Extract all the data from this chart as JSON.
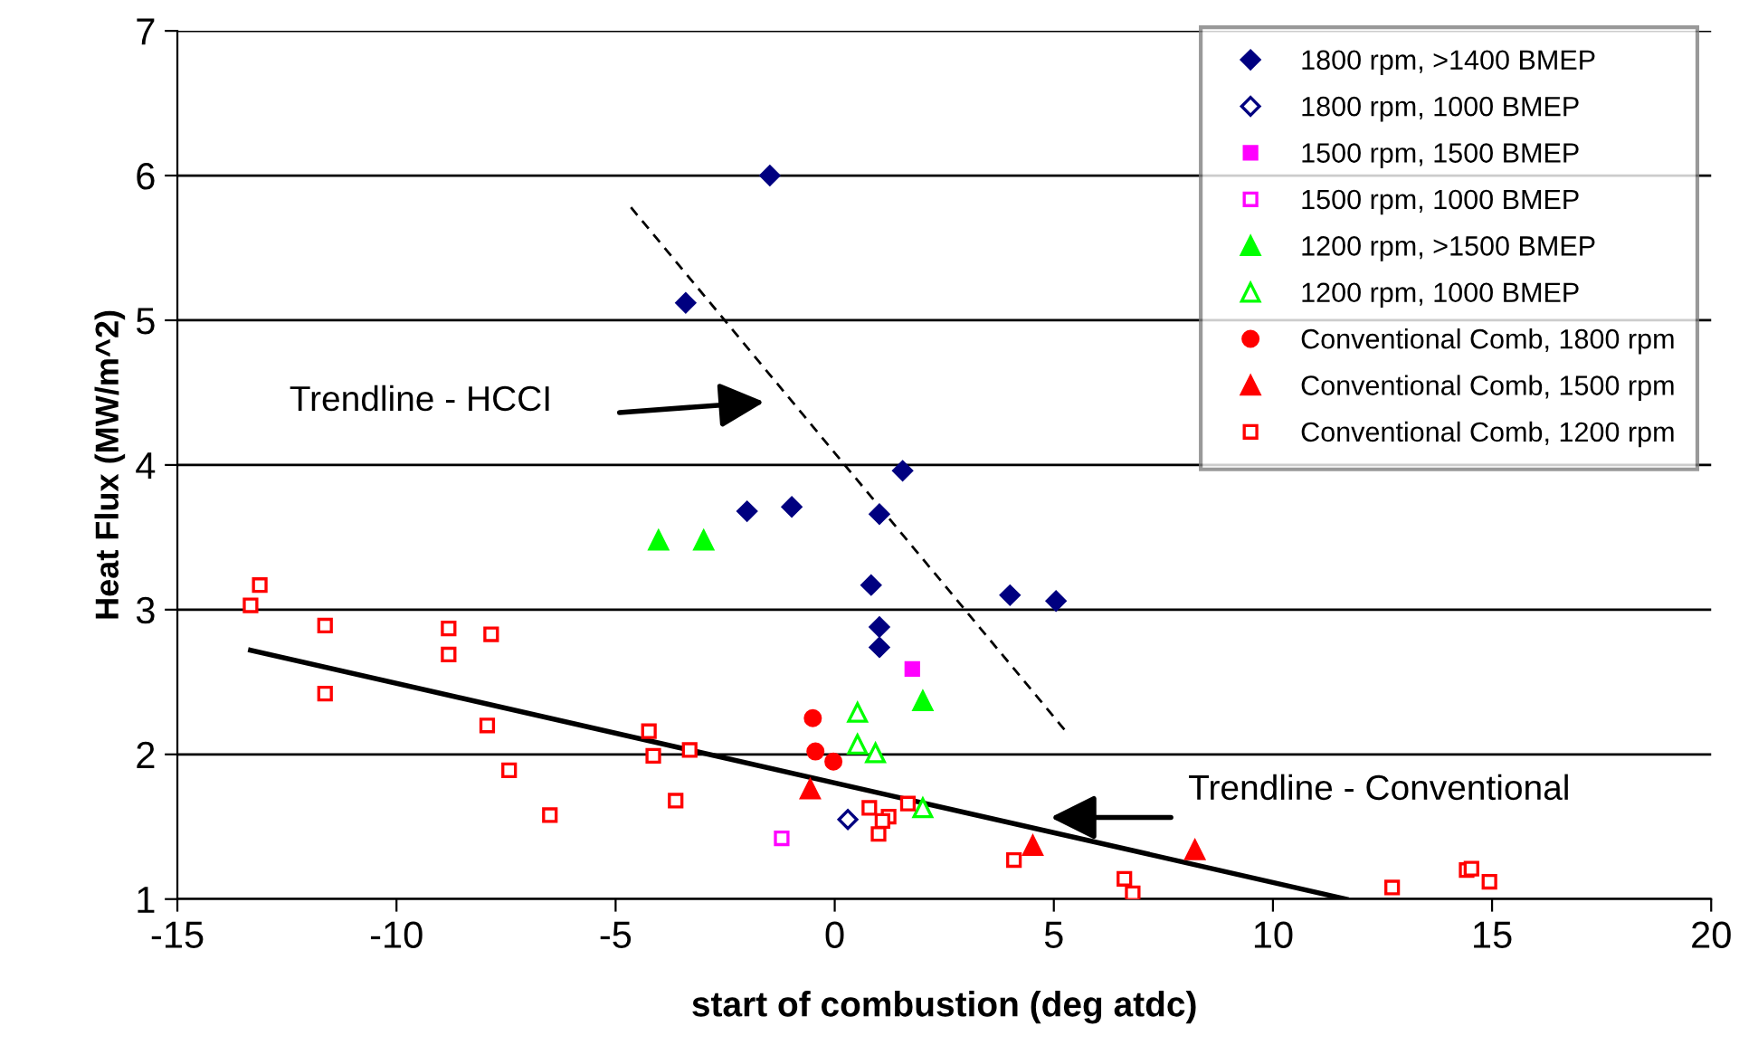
{
  "chart_data": {
    "type": "scatter",
    "xlabel": "start of combustion (deg atdc)",
    "ylabel": "Heat Flux (MW/m^2)",
    "xlim": [
      -15,
      20
    ],
    "xticks": [
      -15,
      -10,
      -5,
      0,
      5,
      10,
      15,
      20
    ],
    "ylim": [
      1,
      7
    ],
    "yticks": [
      1,
      2,
      3,
      4,
      5,
      6,
      7
    ],
    "grid": "y",
    "legend": "top right",
    "series": [
      {
        "name": "1800 rpm, >1400 BMEP",
        "color": "#000080",
        "marker": "diamond",
        "x": [
          -1.48,
          -3.4,
          -2.0,
          -0.98,
          1.02,
          1.55,
          0.83,
          4.0,
          5.05,
          1.02,
          1.02
        ],
        "values": [
          6.0,
          5.12,
          3.68,
          3.71,
          3.66,
          3.96,
          3.17,
          3.1,
          3.06,
          2.88,
          2.74
        ]
      },
      {
        "name": "1800 rpm, 1000 BMEP",
        "color": "#000080",
        "marker": "diamond-open",
        "x": [
          0.3
        ],
        "values": [
          1.55
        ]
      },
      {
        "name": "1500 rpm, 1500 BMEP",
        "color": "#ff00ff",
        "marker": "square",
        "x": [
          1.77
        ],
        "values": [
          2.59
        ]
      },
      {
        "name": "1500 rpm, 1000 BMEP",
        "color": "#ff00ff",
        "marker": "square-open",
        "x": [
          -1.21
        ],
        "values": [
          1.42
        ]
      },
      {
        "name": "1200 rpm, >1500 BMEP",
        "color": "#00ff00",
        "marker": "triangle",
        "x": [
          -4.02,
          -2.99,
          2.01
        ],
        "values": [
          3.48,
          3.48,
          2.37
        ]
      },
      {
        "name": "1200 rpm, 1000 BMEP",
        "color": "#00ff00",
        "marker": "triangle-open",
        "x": [
          0.52,
          0.52,
          0.93,
          2.01
        ],
        "values": [
          2.29,
          2.07,
          2.01,
          1.63
        ]
      },
      {
        "name": "Conventional Comb, 1800 rpm",
        "color": "#ff0000",
        "marker": "circle",
        "x": [
          -0.5,
          -0.44,
          -0.03
        ],
        "values": [
          2.25,
          2.02,
          1.95
        ]
      },
      {
        "name": "Conventional Comb, 1500 rpm",
        "color": "#ff0000",
        "marker": "triangle",
        "x": [
          -0.56,
          4.52,
          8.22
        ],
        "values": [
          1.76,
          1.37,
          1.34
        ]
      },
      {
        "name": "Conventional Comb, 1200 rpm",
        "color": "#ff0000",
        "marker": "square-open",
        "x": [
          -13.12,
          -13.33,
          -11.63,
          -11.63,
          -8.81,
          -8.81,
          -7.84,
          -7.93,
          -7.43,
          -6.5,
          -4.24,
          -4.14,
          -3.31,
          -3.63,
          0.79,
          1.23,
          1.09,
          1.0,
          1.67,
          4.09,
          6.61,
          6.8,
          12.72,
          14.42,
          14.53,
          14.94
        ],
        "values": [
          3.17,
          3.03,
          2.89,
          2.42,
          2.87,
          2.69,
          2.83,
          2.2,
          1.89,
          1.58,
          2.16,
          1.99,
          2.03,
          1.68,
          1.63,
          1.57,
          1.54,
          1.45,
          1.66,
          1.27,
          1.14,
          1.04,
          1.08,
          1.2,
          1.21,
          1.12
        ]
      },
      {
        "type": "line",
        "color": "#000000",
        "line_style": "dashed",
        "x": [
          -4.65,
          5.3
        ],
        "values": [
          5.78,
          2.15
        ]
      },
      {
        "type": "line",
        "color": "#000000",
        "line_style": "solid",
        "x": [
          -13.33,
          11.67
        ],
        "values": [
          2.72,
          1.0
        ]
      }
    ],
    "annotations": [
      "Trendline - HCCI",
      "Trendline - Conventional"
    ]
  }
}
